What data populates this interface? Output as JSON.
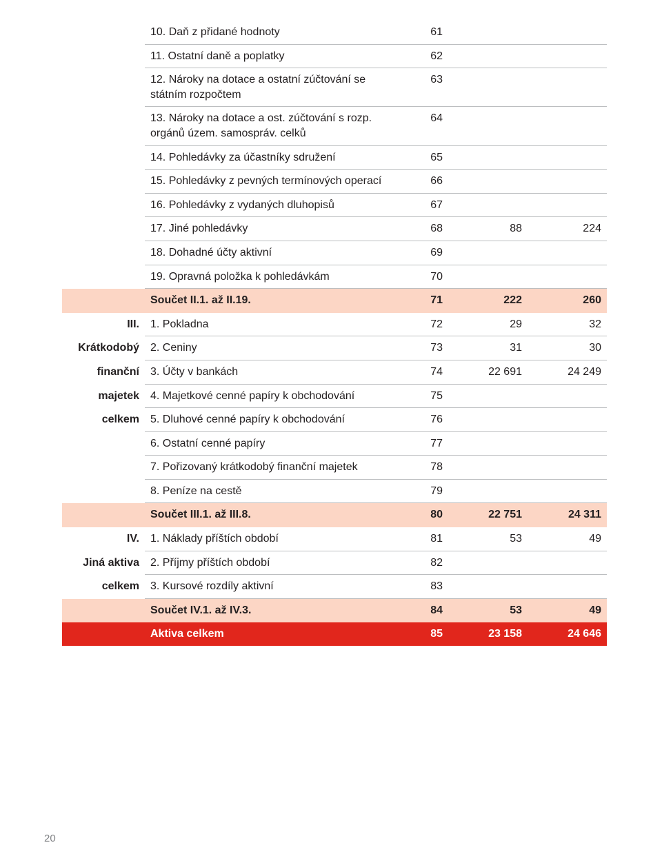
{
  "style": {
    "body_fontsize_pt": 16,
    "text_color": "#231f20",
    "rule_color": "#bcbec0",
    "subtotal_bg": "#fcd6c5",
    "total_bg": "#e1261c",
    "total_text": "#ffffff",
    "page_num_color": "#808285"
  },
  "rows": [
    {
      "label": "",
      "desc": "10. Daň z přidané hodnoty",
      "line": "61",
      "v1": "",
      "v2": "",
      "kind": "plain"
    },
    {
      "label": "",
      "desc": "11. Ostatní daně a poplatky",
      "line": "62",
      "v1": "",
      "v2": "",
      "kind": "plain"
    },
    {
      "label": "",
      "desc": "12. Nároky na dotace a ostatní zúčtování se státním rozpočtem",
      "line": "63",
      "v1": "",
      "v2": "",
      "kind": "plain"
    },
    {
      "label": "",
      "desc": "13. Nároky na dotace a ost. zúčtování s rozp. orgánů územ. samospráv. celků",
      "line": "64",
      "v1": "",
      "v2": "",
      "kind": "plain"
    },
    {
      "label": "",
      "desc": "14. Pohledávky za účastníky sdružení",
      "line": "65",
      "v1": "",
      "v2": "",
      "kind": "plain"
    },
    {
      "label": "",
      "desc": "15. Pohledávky z pevných termínových operací",
      "line": "66",
      "v1": "",
      "v2": "",
      "kind": "plain"
    },
    {
      "label": "",
      "desc": "16. Pohledávky z vydaných dluhopisů",
      "line": "67",
      "v1": "",
      "v2": "",
      "kind": "plain"
    },
    {
      "label": "",
      "desc": "17. Jiné pohledávky",
      "line": "68",
      "v1": "88",
      "v2": "224",
      "kind": "plain"
    },
    {
      "label": "",
      "desc": "18. Dohadné účty aktivní",
      "line": "69",
      "v1": "",
      "v2": "",
      "kind": "plain"
    },
    {
      "label": "",
      "desc": "19. Opravná položka k pohledávkám",
      "line": "70",
      "v1": "",
      "v2": "",
      "kind": "plain"
    },
    {
      "label": "",
      "desc": "Součet II.1. až II.19.",
      "line": "71",
      "v1": "222",
      "v2": "260",
      "kind": "subtotal"
    },
    {
      "label": "III.",
      "desc": "1. Pokladna",
      "line": "72",
      "v1": "29",
      "v2": "32",
      "kind": "plain"
    },
    {
      "label": "Krátkodobý",
      "desc": "2. Ceniny",
      "line": "73",
      "v1": "31",
      "v2": "30",
      "kind": "plain"
    },
    {
      "label": "finanční",
      "desc": "3. Účty v bankách",
      "line": "74",
      "v1": "22 691",
      "v2": "24 249",
      "kind": "plain"
    },
    {
      "label": "majetek",
      "desc": "4. Majetkové cenné papíry k obchodování",
      "line": "75",
      "v1": "",
      "v2": "",
      "kind": "plain"
    },
    {
      "label": "celkem",
      "desc": "5. Dluhové cenné papíry k obchodování",
      "line": "76",
      "v1": "",
      "v2": "",
      "kind": "plain"
    },
    {
      "label": "",
      "desc": "6. Ostatní cenné papíry",
      "line": "77",
      "v1": "",
      "v2": "",
      "kind": "plain"
    },
    {
      "label": "",
      "desc": "7. Pořizovaný krátkodobý finanční majetek",
      "line": "78",
      "v1": "",
      "v2": "",
      "kind": "plain"
    },
    {
      "label": "",
      "desc": "8. Peníze na cestě",
      "line": "79",
      "v1": "",
      "v2": "",
      "kind": "plain"
    },
    {
      "label": "",
      "desc": "Součet III.1. až III.8.",
      "line": "80",
      "v1": "22 751",
      "v2": "24 311",
      "kind": "subtotal"
    },
    {
      "label": "IV.",
      "desc": "1. Náklady příštích období",
      "line": "81",
      "v1": "53",
      "v2": "49",
      "kind": "plain"
    },
    {
      "label": "Jiná aktiva",
      "desc": "2. Příjmy příštích období",
      "line": "82",
      "v1": "",
      "v2": "",
      "kind": "plain"
    },
    {
      "label": "celkem",
      "desc": "3. Kursové rozdíly aktivní",
      "line": "83",
      "v1": "",
      "v2": "",
      "kind": "plain"
    },
    {
      "label": "",
      "desc": "Součet IV.1. až IV.3.",
      "line": "84",
      "v1": "53",
      "v2": "49",
      "kind": "subtotal"
    },
    {
      "label": "",
      "desc": "Aktiva celkem",
      "line": "85",
      "v1": "23 158",
      "v2": "24 646",
      "kind": "total"
    }
  ],
  "page_number": "20"
}
